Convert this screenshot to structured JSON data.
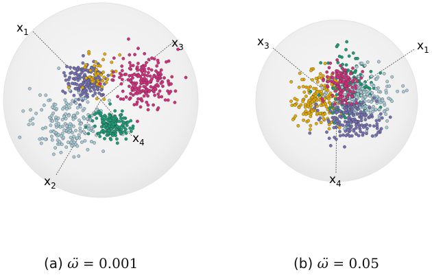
{
  "palette": {
    "purple": "#7570b3",
    "yellow": "#e6ab02",
    "magenta": "#d62e7e",
    "lightblue": "#a6c9d6",
    "green": "#1b9e77"
  },
  "panels": [
    {
      "id": "a",
      "caption_prefix": "(a)",
      "caption_var": "ω̈",
      "caption_eq": "=",
      "caption_value": "0.001",
      "axes": [
        {
          "base": "x",
          "sub": "1"
        },
        {
          "base": "x",
          "sub": "2"
        },
        {
          "base": "x",
          "sub": "3"
        },
        {
          "base": "x",
          "sub": "4"
        }
      ],
      "clusters": [
        {
          "color": "purple",
          "count": 170
        },
        {
          "color": "yellow",
          "count": 45
        },
        {
          "color": "magenta",
          "count": 200
        },
        {
          "color": "lightblue",
          "count": 190
        },
        {
          "color": "green",
          "count": 170
        }
      ]
    },
    {
      "id": "b",
      "caption_prefix": "(b)",
      "caption_var": "ω̈",
      "caption_eq": "=",
      "caption_value": "0.05",
      "axes": [
        {
          "base": "x",
          "sub": "1"
        },
        {
          "base": "x",
          "sub": "3"
        },
        {
          "base": "x",
          "sub": "4"
        }
      ],
      "clusters": [
        {
          "color": "yellow",
          "count": 200
        },
        {
          "color": "green",
          "count": 170
        },
        {
          "color": "lightblue",
          "count": 200
        },
        {
          "color": "purple",
          "count": 170
        },
        {
          "color": "magenta",
          "count": 110
        }
      ]
    }
  ]
}
